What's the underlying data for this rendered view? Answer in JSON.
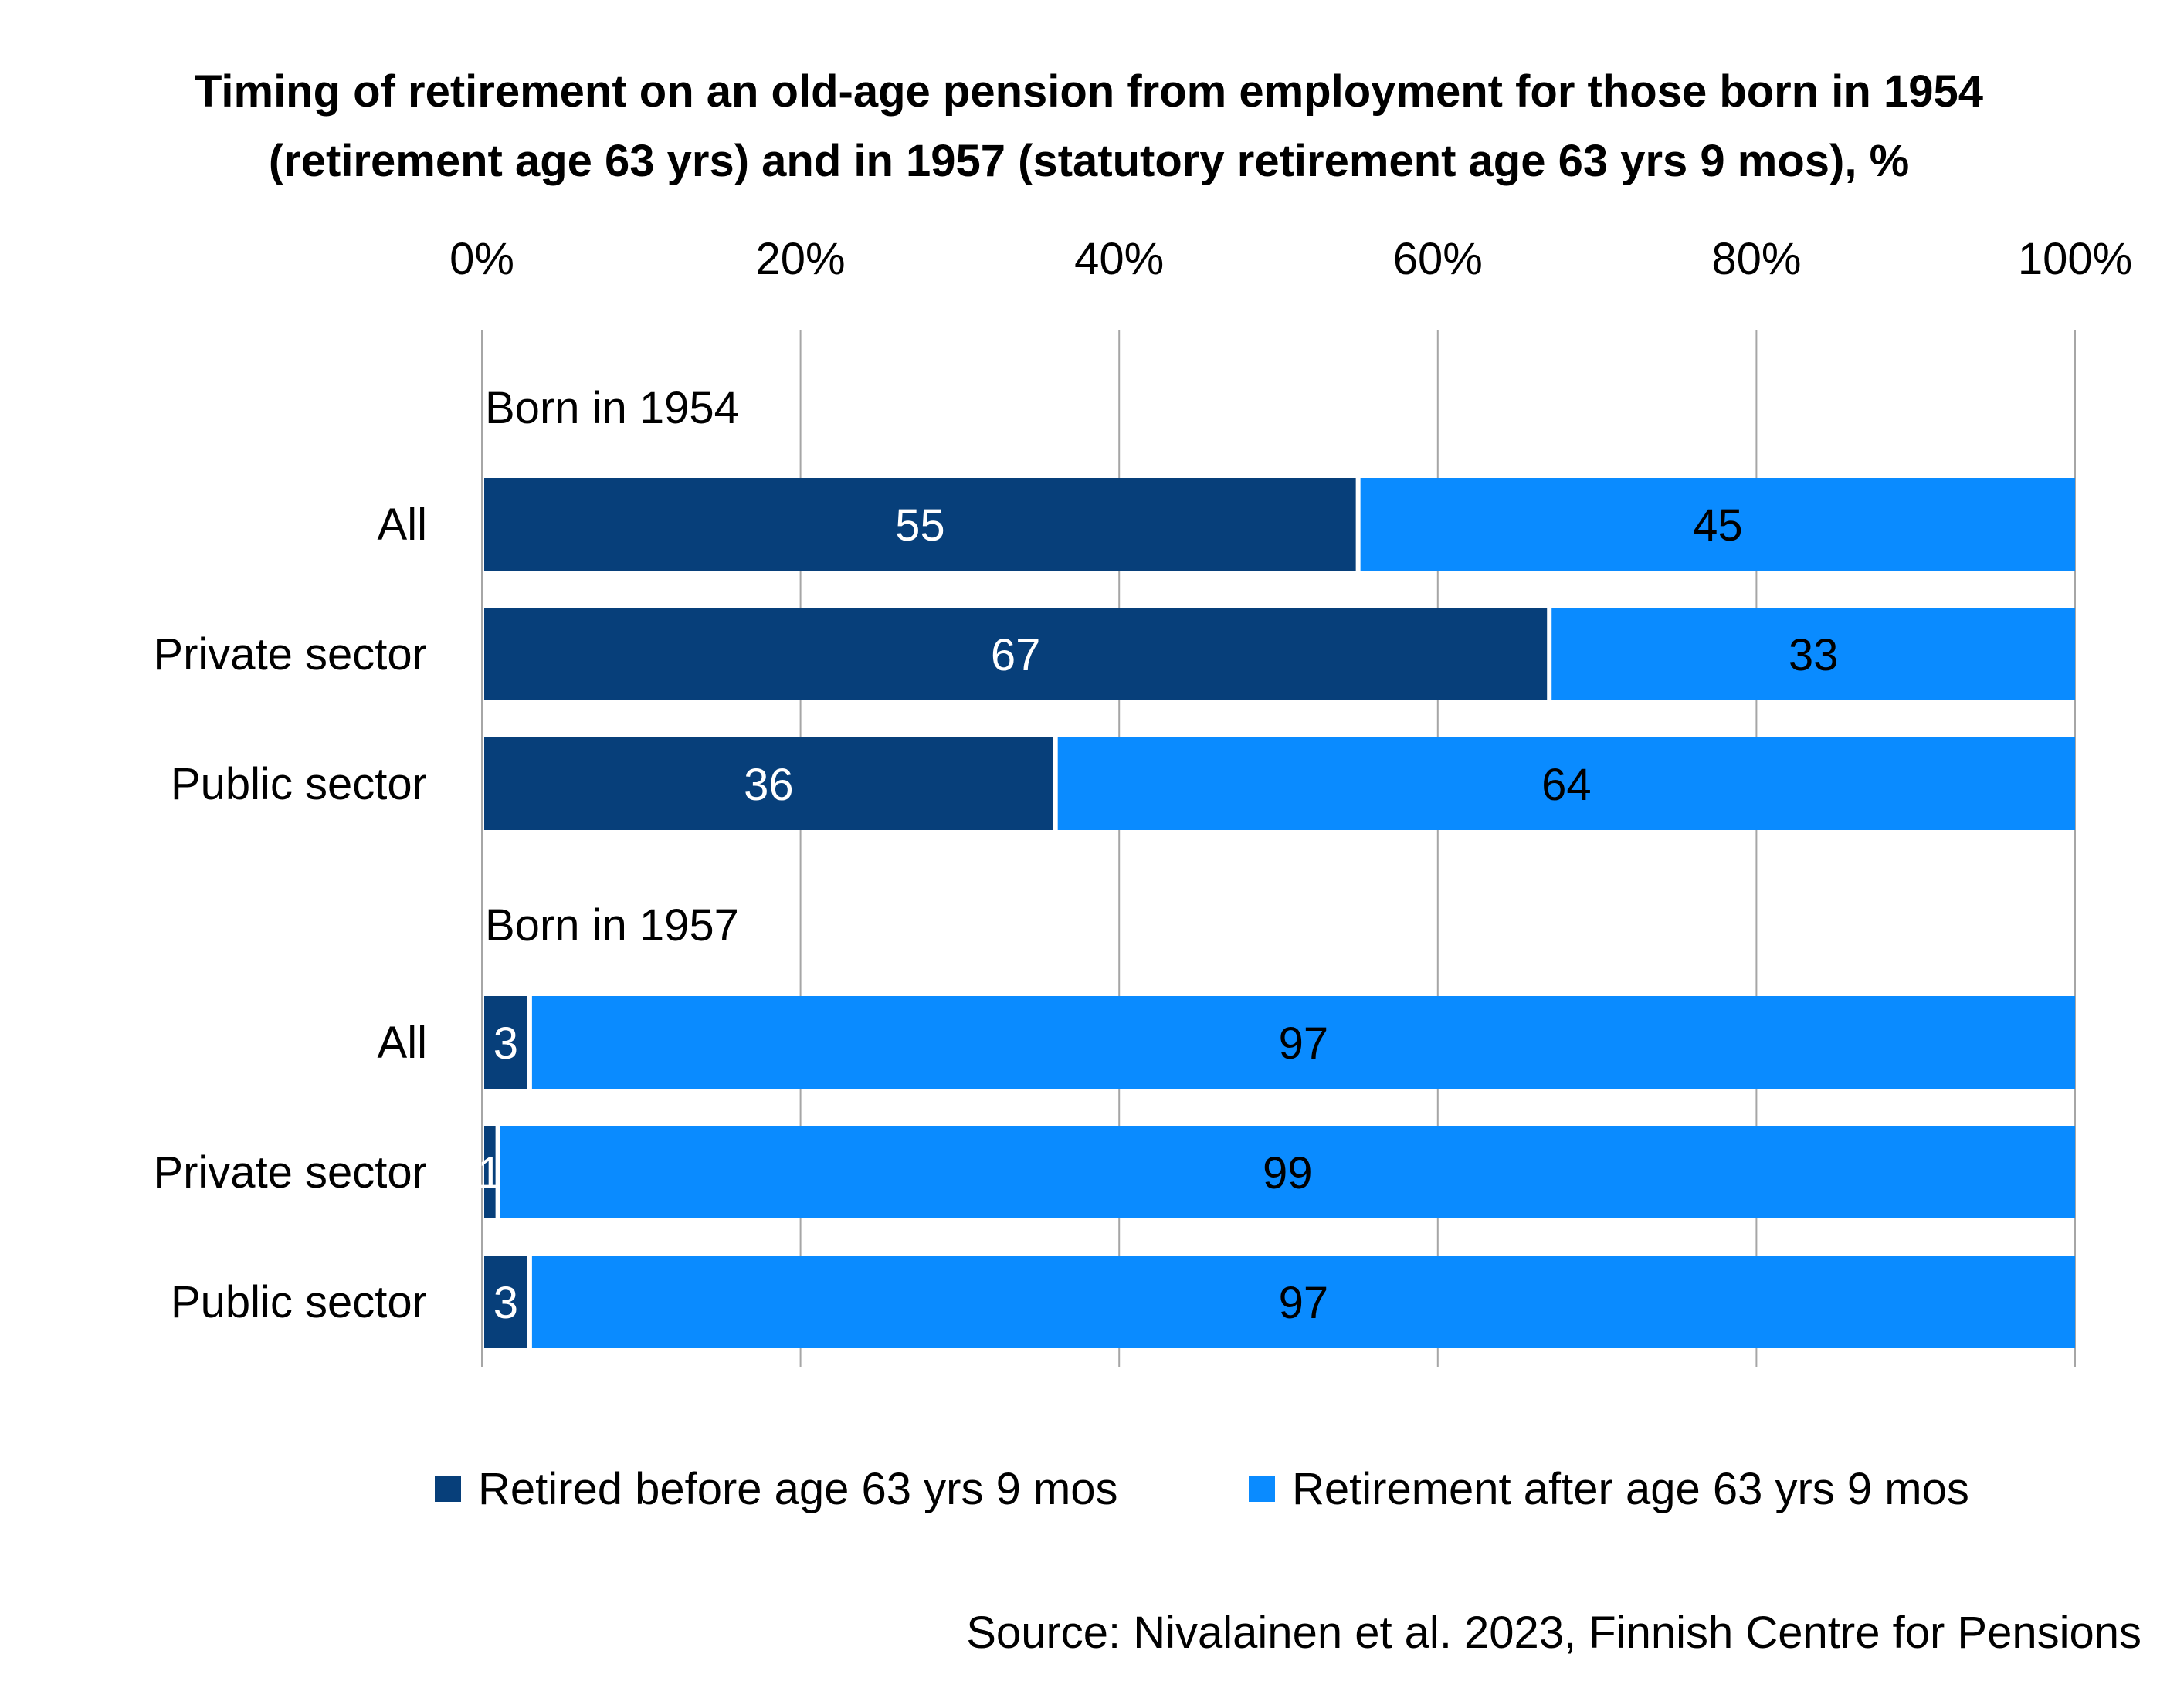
{
  "chart_data": {
    "type": "bar",
    "orientation": "horizontal",
    "stacked": "percent",
    "title_lines": [
      "Timing of retirement on an old-age pension from employment for those born in 1954",
      "(retirement age 63 yrs) and in 1957 (statutory retirement age 63 yrs 9 mos), %"
    ],
    "x_ticks": [
      "0%",
      "20%",
      "40%",
      "60%",
      "80%",
      "100%"
    ],
    "xlim": [
      0,
      100
    ],
    "grid": true,
    "groups": [
      {
        "label": "Born in 1954",
        "categories": [
          "All",
          "Private sector",
          "Public sector"
        ],
        "series_values": [
          [
            55,
            67,
            36
          ],
          [
            45,
            33,
            64
          ]
        ]
      },
      {
        "label": "Born in 1957",
        "categories": [
          "All",
          "Private sector",
          "Public sector"
        ],
        "series_values": [
          [
            3,
            1,
            3
          ],
          [
            97,
            99,
            97
          ]
        ]
      }
    ],
    "series": [
      {
        "name": "Retired before age 63 yrs 9 mos",
        "color": "#073f7a",
        "label_color": "#ffffff"
      },
      {
        "name": "Retirement after age 63 yrs 9 mos",
        "color": "#0a8bff",
        "label_color": "#000000"
      }
    ],
    "legend_position": "bottom",
    "source": "Source: Nivalainen et al. 2023, Finnish Centre for Pensions"
  }
}
